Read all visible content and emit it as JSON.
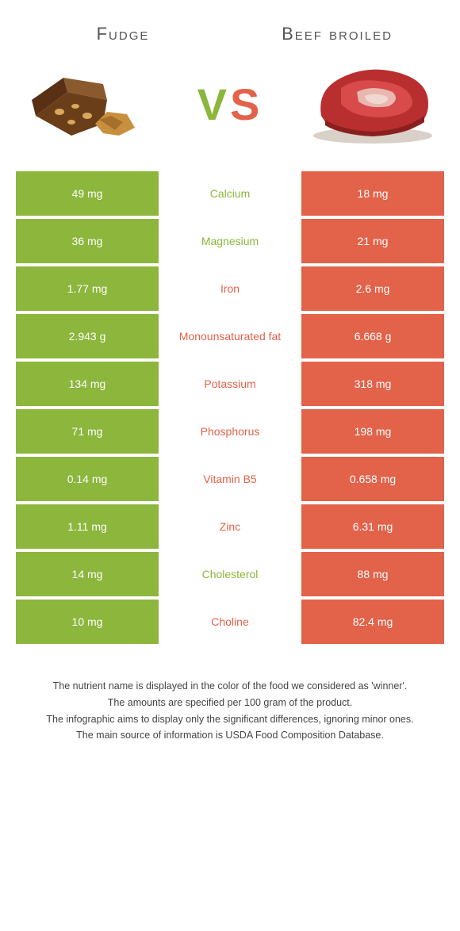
{
  "colors": {
    "green": "#8cb63c",
    "orange": "#e2624a"
  },
  "food_left": {
    "title": "Fudge"
  },
  "food_right": {
    "title": "Beef broiled"
  },
  "vs": {
    "v": "V",
    "s": "S"
  },
  "rows": [
    {
      "left": "49 mg",
      "label": "Calcium",
      "right": "18 mg",
      "winner": "left"
    },
    {
      "left": "36 mg",
      "label": "Magnesium",
      "right": "21 mg",
      "winner": "left"
    },
    {
      "left": "1.77 mg",
      "label": "Iron",
      "right": "2.6 mg",
      "winner": "right"
    },
    {
      "left": "2.943 g",
      "label": "Monounsaturated fat",
      "right": "6.668 g",
      "winner": "right"
    },
    {
      "left": "134 mg",
      "label": "Potassium",
      "right": "318 mg",
      "winner": "right"
    },
    {
      "left": "71 mg",
      "label": "Phosphorus",
      "right": "198 mg",
      "winner": "right"
    },
    {
      "left": "0.14 mg",
      "label": "Vitamin B5",
      "right": "0.658 mg",
      "winner": "right"
    },
    {
      "left": "1.11 mg",
      "label": "Zinc",
      "right": "6.31 mg",
      "winner": "right"
    },
    {
      "left": "14 mg",
      "label": "Cholesterol",
      "right": "88 mg",
      "winner": "left"
    },
    {
      "left": "10 mg",
      "label": "Choline",
      "right": "82.4 mg",
      "winner": "right"
    }
  ],
  "footer": {
    "line1": "The nutrient name is displayed in the color of the food we considered as 'winner'.",
    "line2": "The amounts are specified per 100 gram of the product.",
    "line3": "The infographic aims to display only the significant differences, ignoring minor ones.",
    "line4": "The main source of information is USDA Food Composition Database."
  }
}
